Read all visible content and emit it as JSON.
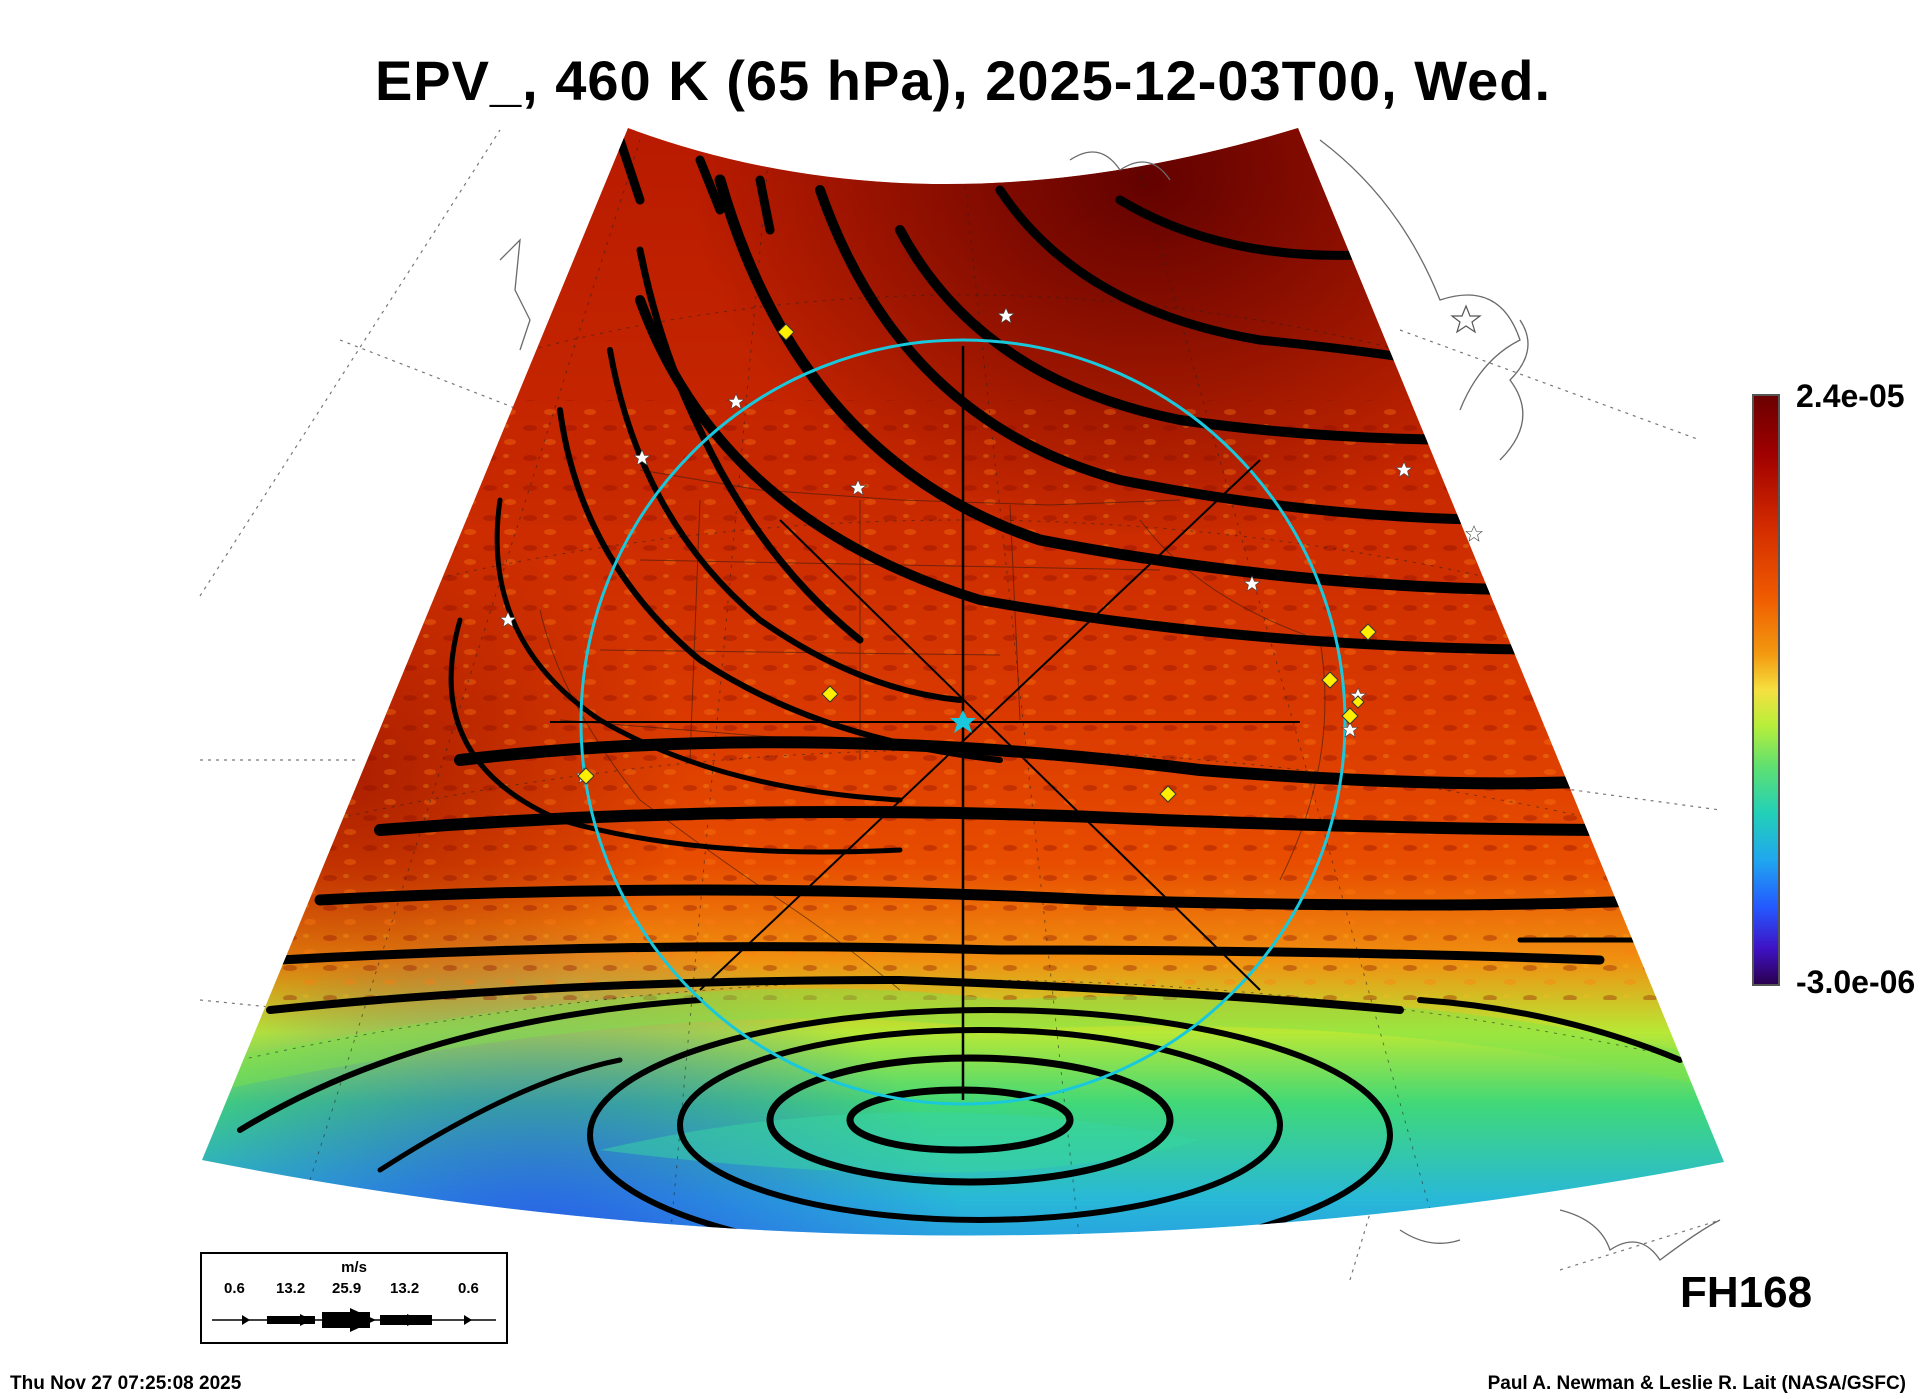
{
  "header": {
    "title": "EPV_, 460 K (65 hPa), 2025-12-03T00, Wed."
  },
  "colorbar": {
    "max_label": "2.4e-05",
    "min_label": "-3.0e-06"
  },
  "forecast_hour": "FH168",
  "wind_legend": {
    "unit": "m/s",
    "values": [
      "0.6",
      "13.2",
      "25.9",
      "13.2",
      "0.6"
    ]
  },
  "footer": {
    "timestamp": "Thu Nov 27 07:25:08 2025",
    "credit": "Paul A. Newman & Leslie R. Lait (NASA/GSFC)"
  },
  "colors": {
    "circle": "#19c8dc",
    "streamline": "#000000",
    "station_star": "#ffffff",
    "station_diamond": "#ffee00",
    "coast": "#6a6a6a"
  },
  "markers": {
    "stars": 11,
    "diamonds": 8
  }
}
